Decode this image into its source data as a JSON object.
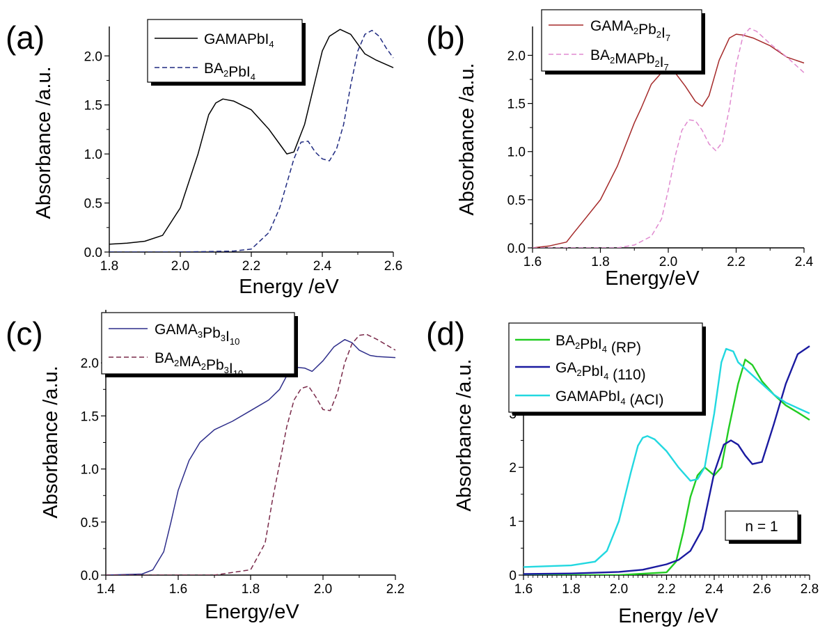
{
  "chart_data": [
    {
      "panel": "(a)",
      "type": "line",
      "xlabel": "Energy /eV",
      "ylabel": "Absorbance /a.u.",
      "xlim": [
        1.8,
        2.6
      ],
      "ylim": [
        0,
        2.3
      ],
      "xticks": [
        "1.8",
        "2.0",
        "2.2",
        "2.4",
        "2.6"
      ],
      "yticks": [
        "0.0",
        "0.5",
        "1.0",
        "1.5",
        "2.0"
      ],
      "legend_position": "top-right",
      "series": [
        {
          "name": "GAMAPbI4",
          "label_main": "GAMAPbI",
          "label_sub": "4",
          "color": "#000000",
          "dash": "solid",
          "x": [
            1.8,
            1.85,
            1.9,
            1.95,
            2.0,
            2.05,
            2.08,
            2.1,
            2.12,
            2.15,
            2.2,
            2.25,
            2.28,
            2.3,
            2.32,
            2.35,
            2.38,
            2.4,
            2.42,
            2.45,
            2.48,
            2.5,
            2.52,
            2.55,
            2.6
          ],
          "y": [
            0.08,
            0.09,
            0.11,
            0.17,
            0.45,
            1.0,
            1.4,
            1.52,
            1.56,
            1.54,
            1.45,
            1.25,
            1.1,
            1.0,
            1.02,
            1.3,
            1.75,
            2.05,
            2.2,
            2.27,
            2.22,
            2.12,
            2.02,
            1.96,
            1.88
          ]
        },
        {
          "name": "BA2PbI4",
          "label_main": "BA",
          "label_sub": "2",
          "label_rest": "PbI",
          "label_sub2": "4",
          "color": "#1f2a80",
          "dash": "dashed",
          "x": [
            1.8,
            2.0,
            2.15,
            2.2,
            2.25,
            2.28,
            2.3,
            2.32,
            2.34,
            2.36,
            2.38,
            2.4,
            2.42,
            2.44,
            2.46,
            2.48,
            2.5,
            2.52,
            2.54,
            2.56,
            2.58,
            2.6
          ],
          "y": [
            0.0,
            0.0,
            0.01,
            0.03,
            0.2,
            0.45,
            0.7,
            0.95,
            1.12,
            1.13,
            1.02,
            0.95,
            0.93,
            1.05,
            1.3,
            1.7,
            2.05,
            2.22,
            2.26,
            2.2,
            2.08,
            1.98
          ]
        }
      ]
    },
    {
      "panel": "(b)",
      "type": "line",
      "xlabel": "Energy/eV",
      "ylabel": "Absorbance /a.u.",
      "xlim": [
        1.6,
        2.4
      ],
      "ylim": [
        0,
        2.3
      ],
      "xticks": [
        "1.6",
        "1.8",
        "2.0",
        "2.2",
        "2.4"
      ],
      "yticks": [
        "0.0",
        "0.5",
        "1.0",
        "1.5",
        "2.0"
      ],
      "legend_position": "top-left",
      "series": [
        {
          "name": "GAMA2Pb2I7",
          "label_main": "GAMA",
          "label_sub": "2",
          "label_rest": "Pb",
          "label_sub2": "2",
          "label_rest2": "I",
          "label_sub3": "7",
          "color": "#a52a2a",
          "dash": "solid",
          "x": [
            1.6,
            1.65,
            1.7,
            1.72,
            1.75,
            1.8,
            1.85,
            1.9,
            1.92,
            1.95,
            1.98,
            2.0,
            2.02,
            2.05,
            2.08,
            2.1,
            2.12,
            2.15,
            2.18,
            2.2,
            2.22,
            2.25,
            2.3,
            2.35,
            2.4
          ],
          "y": [
            0.0,
            0.02,
            0.06,
            0.15,
            0.28,
            0.5,
            0.85,
            1.3,
            1.45,
            1.7,
            1.82,
            1.84,
            1.82,
            1.68,
            1.52,
            1.47,
            1.58,
            1.95,
            2.18,
            2.22,
            2.21,
            2.18,
            2.1,
            1.98,
            1.92
          ]
        },
        {
          "name": "BA2MAPb2I7",
          "label_main": "BA",
          "label_sub": "2",
          "label_rest": "MAPb",
          "label_sub2": "2",
          "label_rest2": "I",
          "label_sub3": "7",
          "color": "#e08ad0",
          "dash": "dashed",
          "x": [
            1.6,
            1.85,
            1.9,
            1.95,
            1.98,
            2.0,
            2.02,
            2.04,
            2.06,
            2.08,
            2.1,
            2.12,
            2.14,
            2.16,
            2.18,
            2.2,
            2.22,
            2.24,
            2.26,
            2.3,
            2.35,
            2.4
          ],
          "y": [
            0.0,
            0.0,
            0.03,
            0.12,
            0.3,
            0.6,
            0.95,
            1.22,
            1.33,
            1.32,
            1.22,
            1.08,
            1.01,
            1.1,
            1.45,
            1.9,
            2.2,
            2.28,
            2.25,
            2.12,
            1.98,
            1.82
          ]
        }
      ]
    },
    {
      "panel": "(c)",
      "type": "line",
      "xlabel": "Energy/eV",
      "ylabel": "Absorbance /a.u.",
      "xlim": [
        1.4,
        2.2
      ],
      "ylim": [
        0,
        2.5
      ],
      "xticks": [
        "1.4",
        "1.6",
        "1.8",
        "2.0",
        "2.2"
      ],
      "yticks": [
        "0.0",
        "0.5",
        "1.0",
        "1.5",
        "2.0"
      ],
      "legend_position": "top-left",
      "series": [
        {
          "name": "GAMA3Pb3I10",
          "label_main": "GAMA",
          "label_sub": "3",
          "label_rest": "Pb",
          "label_sub2": "3",
          "label_rest2": "I",
          "label_sub3": "10",
          "color": "#2d2d8a",
          "dash": "solid",
          "x": [
            1.4,
            1.5,
            1.53,
            1.56,
            1.58,
            1.6,
            1.63,
            1.66,
            1.7,
            1.75,
            1.8,
            1.85,
            1.88,
            1.9,
            1.92,
            1.95,
            1.97,
            2.0,
            2.03,
            2.06,
            2.08,
            2.1,
            2.13,
            2.15,
            2.2
          ],
          "y": [
            0.0,
            0.01,
            0.05,
            0.22,
            0.5,
            0.8,
            1.08,
            1.25,
            1.37,
            1.45,
            1.55,
            1.65,
            1.75,
            1.88,
            1.96,
            1.95,
            1.92,
            2.02,
            2.15,
            2.22,
            2.19,
            2.12,
            2.07,
            2.06,
            2.05
          ]
        },
        {
          "name": "BA2MA2Pb3I10",
          "label_main": "BA",
          "label_sub": "2",
          "label_rest": "MA",
          "label_sub2": "2",
          "label_rest2": "Pb",
          "label_sub3": "3",
          "label_rest3": "I",
          "label_sub4": "10",
          "color": "#7a2a4a",
          "dash": "dashed",
          "x": [
            1.4,
            1.7,
            1.8,
            1.84,
            1.86,
            1.88,
            1.9,
            1.92,
            1.94,
            1.96,
            1.98,
            2.0,
            2.02,
            2.04,
            2.06,
            2.08,
            2.1,
            2.12,
            2.15,
            2.2
          ],
          "y": [
            0.0,
            0.0,
            0.05,
            0.3,
            0.7,
            1.05,
            1.4,
            1.65,
            1.76,
            1.78,
            1.68,
            1.56,
            1.55,
            1.72,
            2.0,
            2.18,
            2.26,
            2.27,
            2.22,
            2.12
          ]
        }
      ]
    },
    {
      "panel": "(d)",
      "type": "line",
      "xlabel": "Energy /eV",
      "ylabel": "Absorbance /a.u.",
      "xlim": [
        1.6,
        2.8
      ],
      "ylim": [
        0,
        4.6
      ],
      "xticks": [
        "1.6",
        "1.8",
        "2.0",
        "2.2",
        "2.4",
        "2.6",
        "2.8"
      ],
      "yticks": [
        "0",
        "1",
        "2",
        "3"
      ],
      "legend_position": "top-left",
      "annotation": "n = 1",
      "series": [
        {
          "name": "BA2PbI4 (RP)",
          "label_main": "BA",
          "label_sub": "2",
          "label_rest": "PbI",
          "label_sub2": "4",
          "label_rest2": " (RP)",
          "color": "#22cc22",
          "dash": "solid",
          "x": [
            1.6,
            2.0,
            2.2,
            2.24,
            2.27,
            2.3,
            2.33,
            2.36,
            2.4,
            2.43,
            2.46,
            2.5,
            2.53,
            2.56,
            2.6,
            2.65,
            2.7,
            2.75,
            2.8
          ],
          "y": [
            0.0,
            0.0,
            0.05,
            0.25,
            0.8,
            1.45,
            1.85,
            2.0,
            1.85,
            2.0,
            2.7,
            3.55,
            4.0,
            3.9,
            3.6,
            3.35,
            3.15,
            3.02,
            2.88
          ]
        },
        {
          "name": "GA2PbI4 (110)",
          "label_main": "GA",
          "label_sub": "2",
          "label_rest": "PbI",
          "label_sub2": "4",
          "label_rest2": " (110)",
          "color": "#1a1aa0",
          "dash": "solid",
          "x": [
            1.6,
            1.8,
            2.0,
            2.1,
            2.2,
            2.25,
            2.3,
            2.35,
            2.4,
            2.44,
            2.47,
            2.5,
            2.53,
            2.56,
            2.6,
            2.65,
            2.7,
            2.75,
            2.8
          ],
          "y": [
            0.02,
            0.03,
            0.06,
            0.1,
            0.2,
            0.28,
            0.45,
            0.85,
            1.9,
            2.42,
            2.5,
            2.42,
            2.22,
            2.06,
            2.1,
            2.8,
            3.55,
            4.1,
            4.25
          ]
        },
        {
          "name": "GAMAPbI4 (ACI)",
          "label_main": "GAMAPbI",
          "label_sub": "4",
          "label_rest": " (ACI)",
          "color": "#22d8e0",
          "dash": "solid",
          "x": [
            1.6,
            1.8,
            1.9,
            1.95,
            2.0,
            2.05,
            2.08,
            2.1,
            2.12,
            2.15,
            2.2,
            2.25,
            2.3,
            2.33,
            2.36,
            2.4,
            2.43,
            2.45,
            2.48,
            2.5,
            2.55,
            2.6,
            2.65,
            2.7,
            2.75,
            2.8
          ],
          "y": [
            0.15,
            0.18,
            0.25,
            0.45,
            1.0,
            1.9,
            2.4,
            2.55,
            2.58,
            2.52,
            2.3,
            2.0,
            1.75,
            1.78,
            2.0,
            3.0,
            3.95,
            4.2,
            4.15,
            3.95,
            3.75,
            3.55,
            3.35,
            3.2,
            3.1,
            3.0
          ]
        }
      ]
    }
  ]
}
